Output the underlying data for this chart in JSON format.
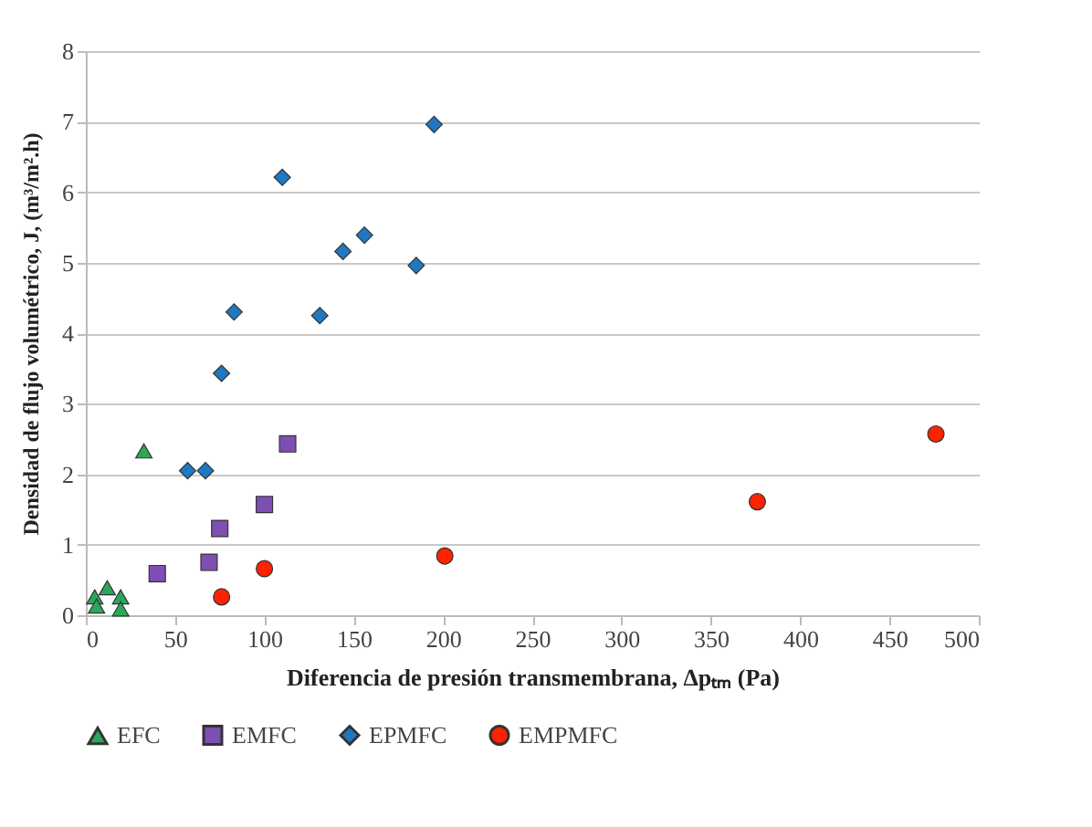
{
  "chart_data": {
    "type": "scatter",
    "xlabel": "Diferencia de presión transmembrana, Δpₜₘ (Pa)",
    "ylabel": "Densidad de flujo volumétrico, J, (m³/m².h)",
    "xlim": [
      0,
      500
    ],
    "xticks": [
      0,
      50,
      100,
      150,
      200,
      250,
      300,
      350,
      400,
      450,
      500
    ],
    "ylim": [
      0,
      8
    ],
    "yticks": [
      0,
      1,
      2,
      3,
      4,
      5,
      6,
      7,
      8
    ],
    "grid": "y",
    "legend": "bottom",
    "series": [
      {
        "name": "EFC",
        "color": "#2aa85a",
        "marker": "triangle",
        "x": [
          5,
          6,
          12,
          19.5,
          19.5,
          32.5
        ],
        "values": [
          0.26,
          0.13,
          0.39,
          0.26,
          0.09,
          2.33
        ]
      },
      {
        "name": "EMFC",
        "color": "#7e4fb3",
        "marker": "square",
        "x": [
          40,
          69,
          75,
          100,
          113
        ],
        "values": [
          0.59,
          0.75,
          1.23,
          1.57,
          2.43
        ]
      },
      {
        "name": "EPMFC",
        "color": "#1f78c1",
        "marker": "diamond",
        "x": [
          57,
          67,
          76,
          83,
          110,
          131,
          144,
          156,
          185,
          195
        ],
        "values": [
          2.05,
          2.05,
          3.43,
          4.3,
          6.21,
          4.25,
          5.16,
          5.39,
          4.96,
          6.96
        ]
      },
      {
        "name": "EMPMFC",
        "color": "#ff2200",
        "marker": "circle",
        "x": [
          76,
          100,
          201,
          376,
          476
        ],
        "values": [
          0.26,
          0.66,
          0.84,
          1.61,
          2.57
        ]
      }
    ]
  }
}
